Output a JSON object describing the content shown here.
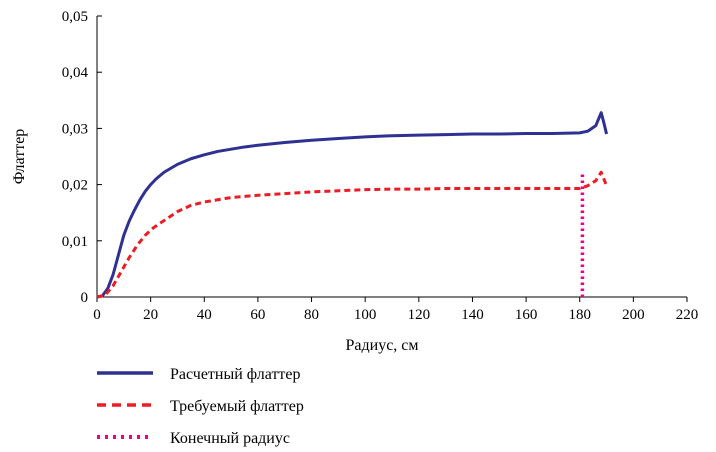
{
  "chart_data": {
    "type": "line",
    "title": "",
    "xlabel": "Радиус, см",
    "ylabel": "Флаттер",
    "xlim": [
      0,
      220
    ],
    "ylim": [
      0,
      0.05
    ],
    "x_ticks": [
      0,
      20,
      40,
      60,
      80,
      100,
      120,
      140,
      160,
      180,
      200,
      220
    ],
    "x_tick_labels": [
      "0",
      "20",
      "40",
      "60",
      "80",
      "100",
      "120",
      "140",
      "160",
      "180",
      "200",
      "220"
    ],
    "y_ticks": [
      0,
      0.01,
      0.02,
      0.03,
      0.04,
      0.05
    ],
    "y_tick_labels": [
      "0",
      "0,01",
      "0,02",
      "0,03",
      "0,04",
      "0,05"
    ],
    "grid": false,
    "legend_position": "bottom-left",
    "series": [
      {
        "name": "Расчетный флаттер",
        "color": "#2e3192",
        "style": "solid",
        "x": [
          0,
          2,
          4,
          6,
          8,
          10,
          12,
          14,
          16,
          18,
          20,
          22,
          25,
          30,
          35,
          40,
          45,
          50,
          55,
          60,
          70,
          80,
          90,
          100,
          110,
          120,
          130,
          140,
          150,
          160,
          170,
          180,
          183,
          186,
          188,
          189,
          190
        ],
        "y": [
          0,
          0.0002,
          0.0015,
          0.004,
          0.0075,
          0.011,
          0.0135,
          0.0155,
          0.0173,
          0.0188,
          0.02,
          0.021,
          0.0222,
          0.0236,
          0.0246,
          0.0253,
          0.0259,
          0.0263,
          0.0267,
          0.027,
          0.0275,
          0.0279,
          0.0282,
          0.0285,
          0.0287,
          0.0288,
          0.0289,
          0.029,
          0.029,
          0.0291,
          0.0291,
          0.0292,
          0.0295,
          0.0305,
          0.0328,
          0.031,
          0.029
        ]
      },
      {
        "name": "Требуемый флаттер",
        "color": "#ed1c24",
        "style": "dashed",
        "x": [
          0,
          3,
          6,
          9,
          12,
          15,
          18,
          21,
          25,
          30,
          35,
          40,
          45,
          50,
          60,
          70,
          80,
          90,
          100,
          110,
          120,
          130,
          140,
          150,
          160,
          170,
          180,
          183,
          186,
          188,
          190
        ],
        "y": [
          0,
          0.0003,
          0.002,
          0.0045,
          0.007,
          0.0092,
          0.011,
          0.0123,
          0.0136,
          0.0152,
          0.0163,
          0.0169,
          0.0173,
          0.0177,
          0.0181,
          0.0184,
          0.0187,
          0.0189,
          0.0191,
          0.0192,
          0.0192,
          0.0193,
          0.0193,
          0.0193,
          0.0193,
          0.0193,
          0.0193,
          0.0198,
          0.0207,
          0.0222,
          0.0198
        ]
      },
      {
        "name": "Конечный радиус",
        "color": "#ec008c",
        "style": "dotted",
        "x": [
          181,
          181
        ],
        "y": [
          0,
          0.022
        ]
      }
    ]
  }
}
